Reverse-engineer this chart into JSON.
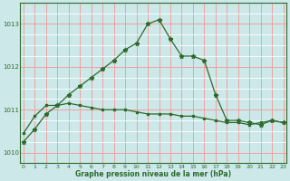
{
  "line1_x": [
    0,
    1,
    2,
    3,
    4,
    5,
    6,
    7,
    8,
    9,
    10,
    11,
    12,
    13,
    14,
    15,
    16,
    17,
    18,
    19,
    20,
    21,
    22,
    23
  ],
  "line1_y": [
    1010.25,
    1010.55,
    1010.9,
    1011.1,
    1011.35,
    1011.55,
    1011.75,
    1011.95,
    1012.15,
    1012.4,
    1012.55,
    1013.0,
    1013.1,
    1012.65,
    1012.25,
    1012.25,
    1012.15,
    1011.35,
    1010.75,
    1010.75,
    1010.7,
    1010.65,
    1010.75,
    1010.7
  ],
  "line2_x": [
    0,
    1,
    2,
    3,
    4,
    5,
    6,
    7,
    8,
    9,
    10,
    11,
    12,
    13,
    14,
    15,
    16,
    17,
    18,
    19,
    20,
    21,
    22,
    23
  ],
  "line2_y": [
    1010.45,
    1010.85,
    1011.1,
    1011.1,
    1011.15,
    1011.1,
    1011.05,
    1011.0,
    1011.0,
    1011.0,
    1010.95,
    1010.9,
    1010.9,
    1010.9,
    1010.85,
    1010.85,
    1010.8,
    1010.75,
    1010.7,
    1010.7,
    1010.65,
    1010.7,
    1010.75,
    1010.7
  ],
  "line_color": "#2d6a2d",
  "bg_color": "#cce8e8",
  "grid_color_major": "#f0a0a0",
  "grid_color_minor": "#ffffff",
  "xlabel": "Graphe pression niveau de la mer (hPa)",
  "yticks": [
    1010,
    1011,
    1012,
    1013
  ],
  "xticks": [
    0,
    1,
    2,
    3,
    4,
    5,
    6,
    7,
    8,
    9,
    10,
    11,
    12,
    13,
    14,
    15,
    16,
    17,
    18,
    19,
    20,
    21,
    22,
    23
  ],
  "xtick_labels": [
    "0",
    "1",
    "2",
    "3",
    "4",
    "5",
    "6",
    "7",
    "8",
    "9",
    "10",
    "11",
    "12",
    "13",
    "14",
    "15",
    "16",
    "17",
    "18",
    "19",
    "20",
    "21",
    "22",
    "23"
  ],
  "ylim": [
    1009.75,
    1013.5
  ],
  "xlim": [
    -0.3,
    23.3
  ],
  "marker_size": 3.5,
  "line_width": 0.9
}
